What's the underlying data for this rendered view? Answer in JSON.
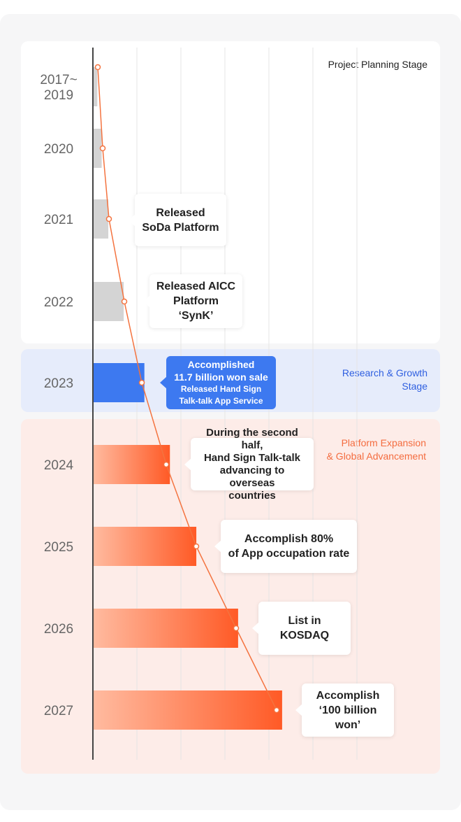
{
  "stages": {
    "planning": "Project Planning Stage",
    "research": [
      "Research & Growth",
      "Stage"
    ],
    "expansion": [
      "Platform Expansion",
      "& Global Advancement"
    ]
  },
  "colors": {
    "gray_bar": "#d4d4d4",
    "blue_bar": "#3d79f0",
    "orange_start": "#ffbba0",
    "orange_end": "#ff5a26",
    "line": "#f4733f",
    "grid": "#e5e5e5",
    "axis": "#444444"
  },
  "chart_data": {
    "type": "bar",
    "orientation": "horizontal",
    "categories": [
      "2017~ 2019",
      "2020",
      "2021",
      "2022",
      "2023",
      "2024",
      "2025",
      "2026",
      "2027"
    ],
    "category_lines": [
      [
        "2017~",
        "2019"
      ],
      [
        "2020"
      ],
      [
        "2021"
      ],
      [
        "2022"
      ],
      [
        "2023"
      ],
      [
        "2024"
      ],
      [
        "2025"
      ],
      [
        "2026"
      ],
      [
        "2027"
      ]
    ],
    "values": [
      0.1,
      0.2,
      0.35,
      0.7,
      1.17,
      1.75,
      2.35,
      3.3,
      4.3
    ],
    "bar_style": [
      "gray",
      "gray",
      "gray",
      "gray",
      "blue",
      "orange",
      "orange",
      "orange",
      "orange"
    ],
    "xlim": [
      0,
      6
    ],
    "grid": true,
    "trend_line": true,
    "axis_labels_shown": false,
    "annotations": [
      null,
      null,
      {
        "lines": [
          "Released",
          "SoDa Platform"
        ]
      },
      {
        "lines": [
          "Released AICC",
          "Platform ‘SynK’"
        ]
      },
      {
        "lines": [
          "Accomplished",
          "11.7 billion won sale",
          "Released Hand Sign",
          "Talk-talk App Service"
        ]
      },
      {
        "lines": [
          "During the second half,",
          "Hand Sign Talk-talk",
          "advancing to overseas",
          "countries"
        ]
      },
      {
        "lines": [
          "Accomplish 80%",
          "of App occupation rate"
        ]
      },
      {
        "lines": [
          "List in KOSDAQ"
        ]
      },
      {
        "lines": [
          "Accomplish",
          "‘100 billion won’"
        ]
      }
    ]
  }
}
